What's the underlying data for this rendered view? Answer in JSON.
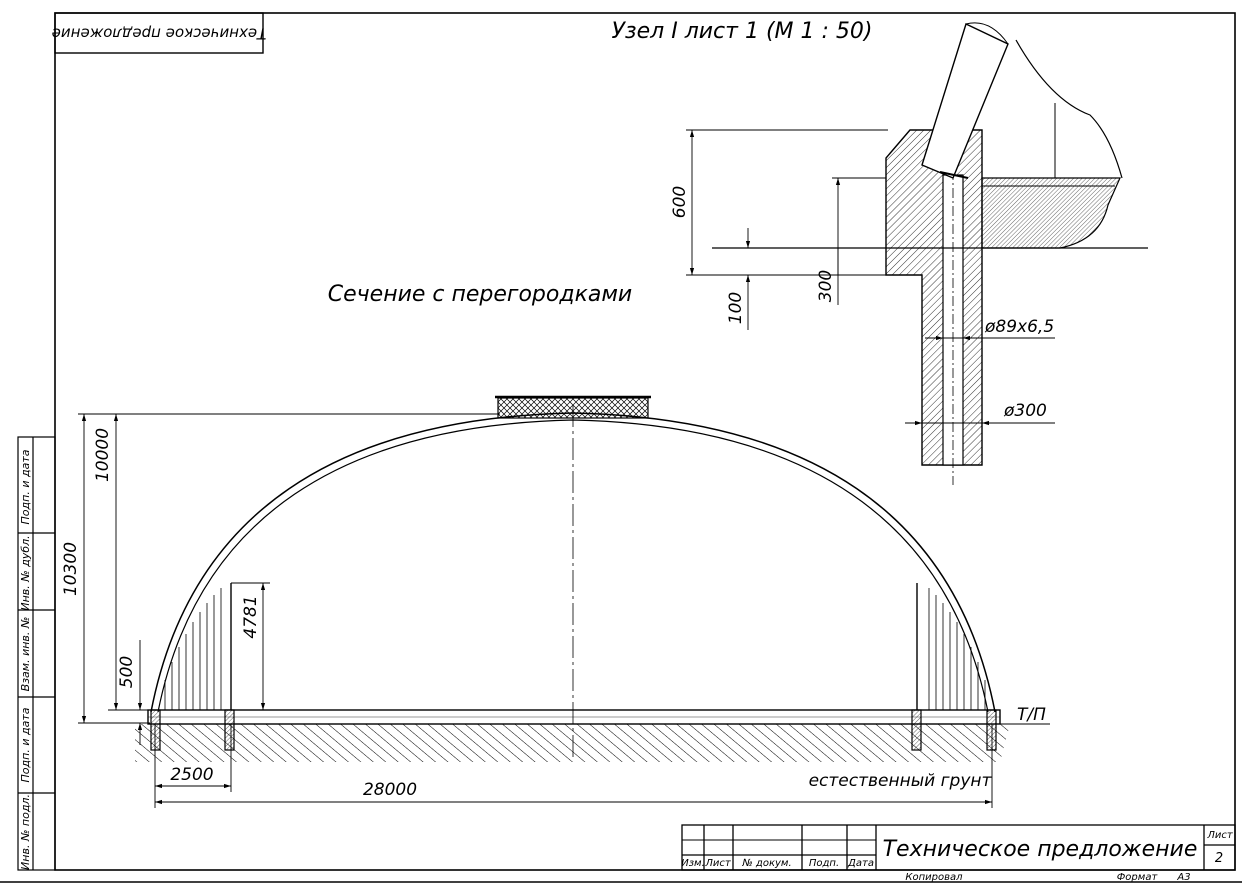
{
  "top_stamp": "Техническое предложение",
  "node_title": "Узел I  лист 1 (М 1 : 50)",
  "section_label": "Сечение с перегородками",
  "node_dims": {
    "d600": "600",
    "d300": "300",
    "d100": "100",
    "pipe_diameter": "ø89х6,5",
    "pile_diameter": "ø300"
  },
  "main_dims": {
    "height_10000": "10000",
    "height_10300": "10300",
    "height_500": "500",
    "partition_height": "4781",
    "span_2500": "2500",
    "span_28000": "28000"
  },
  "ground_level": "Т/П",
  "natural_ground": "естественный грунт",
  "side_strip": [
    "Подп. и дата",
    "Инв. № дубл.",
    "Взам. инв. №",
    "Подп. и дата",
    "Инв. № подл."
  ],
  "title_block": {
    "columns": [
      "Изм.",
      "Лист",
      "№ докум.",
      "Подп.",
      "Дата"
    ],
    "title": "Техническое предложение",
    "sheet_label": "Лист",
    "sheet_number": "2",
    "copied": "Копировал",
    "format_label": "Формат",
    "format_value": "А3"
  }
}
